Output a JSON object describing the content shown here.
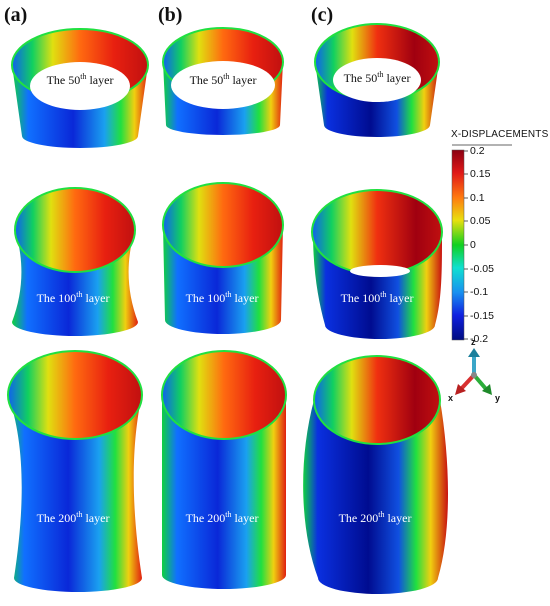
{
  "panels": {
    "a": "(a)",
    "b": "(b)",
    "c": "(c)"
  },
  "layer_labels": {
    "r1": {
      "prefix": "The 50",
      "sup": "th",
      "suffix": " layer"
    },
    "r2": {
      "prefix": "The 100",
      "sup": "th",
      "suffix": " layer"
    },
    "r3": {
      "prefix": "The 200",
      "sup": "th",
      "suffix": " layer"
    }
  },
  "legend": {
    "title": "X-DISPLACEMENTS",
    "ticks": [
      "0.2",
      "0.15",
      "0.1",
      "0.05",
      "0",
      "-0.05",
      "-0.1",
      "-0.15",
      "-0.2"
    ],
    "colors": [
      "#8b0012",
      "#e01818",
      "#ff7a10",
      "#e8e010",
      "#10d020",
      "#10e0d0",
      "#1890f0",
      "#1020e0",
      "#000c80"
    ]
  },
  "triad": {
    "z": "z",
    "x": "x",
    "y": "y",
    "z_color": "#3aa6c8",
    "x_color": "#d83030",
    "y_color": "#2cae3a"
  }
}
